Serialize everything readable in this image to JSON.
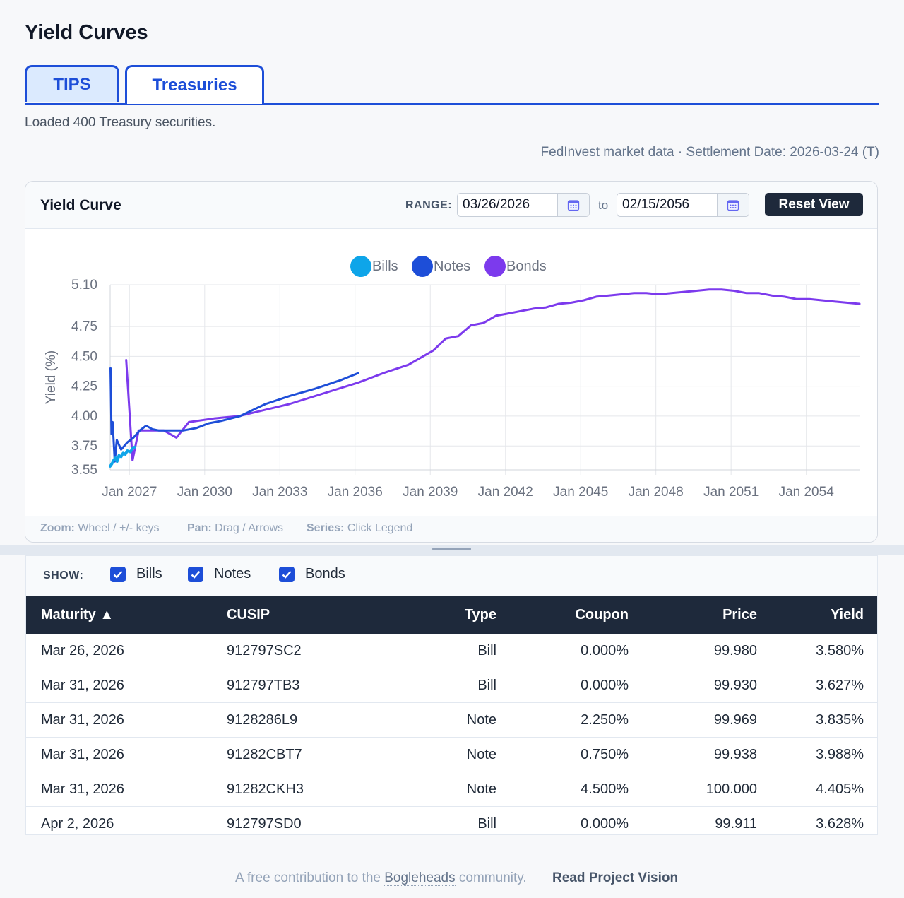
{
  "page": {
    "title": "Yield Curves",
    "tabs": [
      {
        "label": "TIPS"
      },
      {
        "label": "Treasuries"
      }
    ],
    "status": "Loaded 400 Treasury securities.",
    "market_info": "FedInvest market data · Settlement Date: 2026-03-24 (T)"
  },
  "chart_panel": {
    "title": "Yield Curve",
    "range_label": "RANGE:",
    "range_from": "03/26/2026",
    "range_to_text": "to",
    "range_to": "02/15/2056",
    "reset_label": "Reset View",
    "hints": {
      "zoom_key": "Zoom:",
      "zoom_val": "Wheel / +/- keys",
      "pan_key": "Pan:",
      "pan_val": "Drag / Arrows",
      "series_key": "Series:",
      "series_val": "Click Legend"
    }
  },
  "chart_data": {
    "type": "line",
    "title": "",
    "xlabel": "",
    "ylabel": "Yield (%)",
    "x_axis_kind": "date",
    "xlim": [
      "2026-03-26",
      "2056-02-15"
    ],
    "ylim": [
      3.55,
      5.1
    ],
    "yticks": [
      3.55,
      3.75,
      4.0,
      4.25,
      4.5,
      4.75,
      5.1
    ],
    "xticks": [
      "Jan 2027",
      "Jan 2030",
      "Jan 2033",
      "Jan 2036",
      "Jan 2039",
      "Jan 2042",
      "Jan 2045",
      "Jan 2048",
      "Jan 2051",
      "Jan 2054"
    ],
    "grid": true,
    "legend_position": "top",
    "series": [
      {
        "name": "Bills",
        "color": "#0ea5e9",
        "x": [
          "2026-03-26",
          "2026-04-20",
          "2026-05-15",
          "2026-06-10",
          "2026-07-05",
          "2026-08-01",
          "2026-09-01",
          "2026-10-01",
          "2026-11-01",
          "2026-12-01",
          "2027-01-15",
          "2027-02-15",
          "2027-03-15"
        ],
        "y": [
          3.58,
          3.6,
          3.63,
          3.65,
          3.62,
          3.67,
          3.66,
          3.69,
          3.68,
          3.71,
          3.7,
          3.73,
          3.74
        ]
      },
      {
        "name": "Notes",
        "color": "#1d4ed8",
        "x": [
          "2026-03-31",
          "2026-04-15",
          "2026-05-01",
          "2026-06-01",
          "2026-07-01",
          "2026-09-01",
          "2026-12-01",
          "2027-03-01",
          "2027-06-01",
          "2027-09-01",
          "2027-12-01",
          "2028-03-01",
          "2028-09-01",
          "2029-03-01",
          "2029-09-01",
          "2030-03-01",
          "2030-09-01",
          "2031-06-01",
          "2032-06-01",
          "2033-06-01",
          "2034-06-01",
          "2035-06-01",
          "2036-02-15"
        ],
        "y": [
          4.4,
          3.85,
          3.95,
          3.62,
          3.8,
          3.72,
          3.78,
          3.82,
          3.88,
          3.92,
          3.89,
          3.88,
          3.88,
          3.88,
          3.9,
          3.94,
          3.96,
          4.0,
          4.1,
          4.17,
          4.23,
          4.3,
          4.36
        ]
      },
      {
        "name": "Bonds",
        "color": "#7c3aed",
        "x": [
          "2026-11-15",
          "2027-02-15",
          "2027-05-15",
          "2027-08-15",
          "2028-05-15",
          "2028-11-15",
          "2029-05-15",
          "2030-05-15",
          "2031-05-15",
          "2033-05-15",
          "2036-02-15",
          "2037-02-15",
          "2038-02-15",
          "2039-02-15",
          "2039-08-15",
          "2040-02-15",
          "2040-08-15",
          "2041-02-15",
          "2041-08-15",
          "2042-02-15",
          "2042-08-15",
          "2043-02-15",
          "2043-08-15",
          "2044-02-15",
          "2044-08-15",
          "2045-02-15",
          "2045-08-15",
          "2046-02-15",
          "2046-08-15",
          "2047-02-15",
          "2047-08-15",
          "2048-02-15",
          "2048-08-15",
          "2049-02-15",
          "2049-08-15",
          "2050-02-15",
          "2050-08-15",
          "2051-02-15",
          "2051-08-15",
          "2052-02-15",
          "2052-08-15",
          "2053-02-15",
          "2053-08-15",
          "2054-02-15",
          "2054-08-15",
          "2055-02-15",
          "2055-08-15",
          "2056-02-15"
        ],
        "y": [
          4.47,
          3.63,
          3.88,
          3.88,
          3.88,
          3.82,
          3.95,
          3.98,
          4.0,
          4.1,
          4.28,
          4.36,
          4.43,
          4.55,
          4.65,
          4.67,
          4.76,
          4.78,
          4.84,
          4.86,
          4.88,
          4.9,
          4.91,
          4.94,
          4.95,
          4.97,
          5.0,
          5.01,
          5.02,
          5.03,
          5.03,
          5.02,
          5.03,
          5.04,
          5.05,
          5.06,
          5.06,
          5.05,
          5.03,
          5.03,
          5.01,
          5.0,
          4.98,
          4.98,
          4.97,
          4.96,
          4.95,
          4.94
        ]
      }
    ]
  },
  "table_panel": {
    "show_label": "SHOW:",
    "toggles": [
      {
        "label": "Bills",
        "checked": true
      },
      {
        "label": "Notes",
        "checked": true
      },
      {
        "label": "Bonds",
        "checked": true
      }
    ],
    "columns": [
      "Maturity ▲",
      "CUSIP",
      "Type",
      "Coupon",
      "Price",
      "Yield"
    ],
    "rows": [
      {
        "maturity": "Mar 26, 2026",
        "cusip": "912797SC2",
        "type": "Bill",
        "coupon": "0.000%",
        "price": "99.980",
        "yield": "3.580%"
      },
      {
        "maturity": "Mar 31, 2026",
        "cusip": "912797TB3",
        "type": "Bill",
        "coupon": "0.000%",
        "price": "99.930",
        "yield": "3.627%"
      },
      {
        "maturity": "Mar 31, 2026",
        "cusip": "9128286L9",
        "type": "Note",
        "coupon": "2.250%",
        "price": "99.969",
        "yield": "3.835%"
      },
      {
        "maturity": "Mar 31, 2026",
        "cusip": "91282CBT7",
        "type": "Note",
        "coupon": "0.750%",
        "price": "99.938",
        "yield": "3.988%"
      },
      {
        "maturity": "Mar 31, 2026",
        "cusip": "91282CKH3",
        "type": "Note",
        "coupon": "4.500%",
        "price": "100.000",
        "yield": "4.405%"
      },
      {
        "maturity": "Apr 2, 2026",
        "cusip": "912797SD0",
        "type": "Bill",
        "coupon": "0.000%",
        "price": "99.911",
        "yield": "3.628%"
      }
    ]
  },
  "footer": {
    "prefix": "A free contribution to the",
    "link": "Bogleheads",
    "suffix": "community.",
    "vision": "Read Project Vision"
  }
}
